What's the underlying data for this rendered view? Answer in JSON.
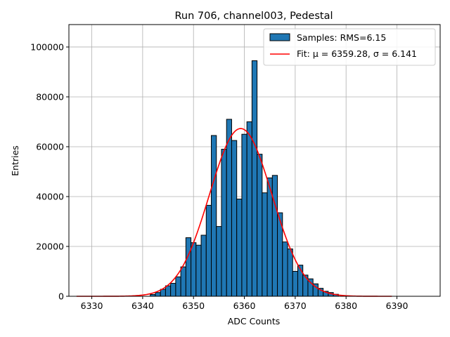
{
  "chart_data": {
    "type": "bar",
    "title": "Run 706, channel003, Pedestal",
    "xlabel": "ADC Counts",
    "ylabel": "Entries",
    "xlim": [
      6325.5,
      6398.5
    ],
    "ylim": [
      0,
      109000
    ],
    "xticks": [
      6330,
      6340,
      6350,
      6360,
      6370,
      6380,
      6390
    ],
    "yticks": [
      0,
      20000,
      40000,
      60000,
      80000,
      100000
    ],
    "grid": true,
    "legend_position": "top-right",
    "bin_width": 1,
    "bin_centers": [
      6342,
      6343,
      6344,
      6345,
      6346,
      6347,
      6348,
      6349,
      6350,
      6351,
      6352,
      6353,
      6354,
      6355,
      6356,
      6357,
      6358,
      6359,
      6360,
      6361,
      6362,
      6363,
      6364,
      6365,
      6366,
      6367,
      6368,
      6369,
      6370,
      6371,
      6372,
      6373,
      6374,
      6375,
      6376,
      6377,
      6378
    ],
    "series": [
      {
        "name": "Samples: RMS=6.15",
        "type": "histogram",
        "color": "#1f77b4",
        "edgecolor": "#000000",
        "values": [
          700,
          1500,
          2800,
          4200,
          5200,
          7800,
          11800,
          23500,
          21500,
          20500,
          24500,
          36500,
          64500,
          28000,
          59000,
          71000,
          62500,
          39000,
          65000,
          70000,
          94500,
          57000,
          41500,
          47500,
          48500,
          33500,
          21800,
          19000,
          10000,
          12500,
          8500,
          7000,
          5000,
          3200,
          2000,
          1500,
          800
        ]
      },
      {
        "name": "Fit: μ = 6359.28, σ = 6.141",
        "type": "line",
        "color": "#ff0000",
        "model": "gaussian",
        "mu": 6359.28,
        "sigma": 6.141,
        "amplitude": 67300,
        "x_range": [
          6327,
          6389
        ]
      }
    ]
  }
}
